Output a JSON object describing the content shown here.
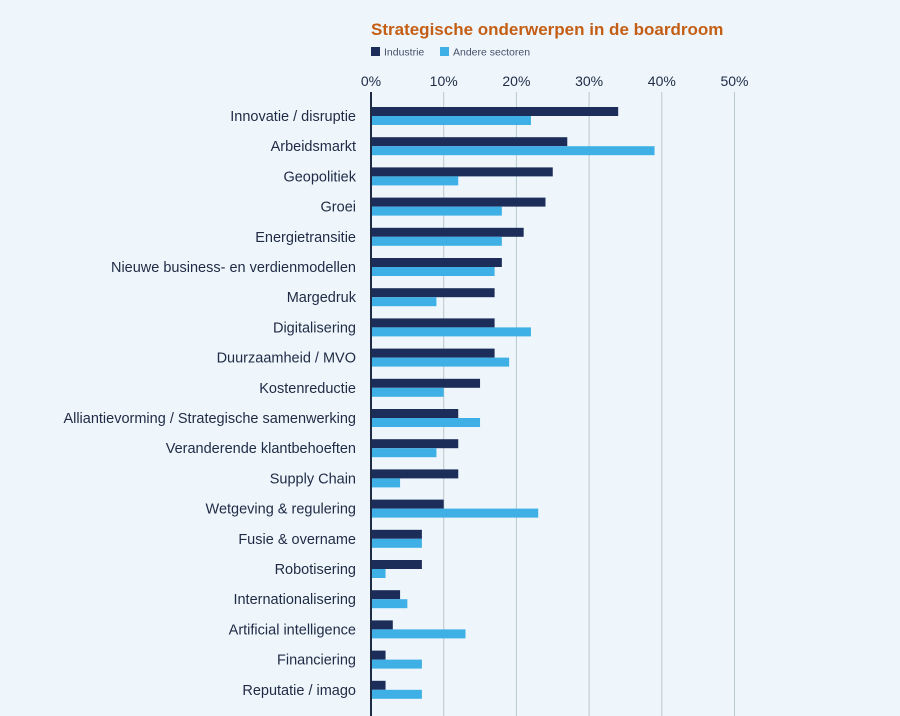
{
  "chart_data": {
    "type": "bar",
    "orientation": "horizontal",
    "title": "Strategische onderwerpen in de boardroom",
    "xlabel": "",
    "ylabel": "",
    "xlim": [
      0,
      50
    ],
    "x_ticks": [
      0,
      10,
      20,
      30,
      40,
      50
    ],
    "x_tick_labels": [
      "0%",
      "10%",
      "20%",
      "30%",
      "40%",
      "50%"
    ],
    "grid": true,
    "legend_position": "top-left",
    "categories": [
      "Innovatie / disruptie",
      "Arbeidsmarkt",
      "Geopolitiek",
      "Groei",
      "Energietransitie",
      "Nieuwe business- en verdienmodellen",
      "Margedruk",
      "Digitalisering",
      "Duurzaamheid / MVO",
      "Kostenreductie",
      "Alliantievorming / Strategische samenwerking",
      "Veranderende klantbehoeften",
      "Supply Chain",
      "Wetgeving & regulering",
      "Fusie & overname",
      "Robotisering",
      "Internationalisering",
      "Artificial intelligence",
      "Financiering",
      "Reputatie / imago"
    ],
    "series": [
      {
        "name": "Industrie",
        "color": "#1c2d5a",
        "values": [
          34,
          27,
          25,
          24,
          21,
          18,
          17,
          17,
          17,
          15,
          12,
          12,
          12,
          10,
          7,
          7,
          4,
          3,
          2,
          2
        ]
      },
      {
        "name": "Andere sectoren",
        "color": "#3fb0e6",
        "values": [
          22,
          39,
          12,
          18,
          18,
          17,
          9,
          22,
          19,
          10,
          15,
          9,
          4,
          23,
          7,
          2,
          5,
          13,
          7,
          7
        ]
      }
    ],
    "colors": {
      "title": "#c45e14",
      "label": "#1f2a44",
      "grid": "#b9c9c9",
      "axis": "#1f2a44",
      "legend_text": "#44506a",
      "background": "#eef6fc"
    }
  }
}
